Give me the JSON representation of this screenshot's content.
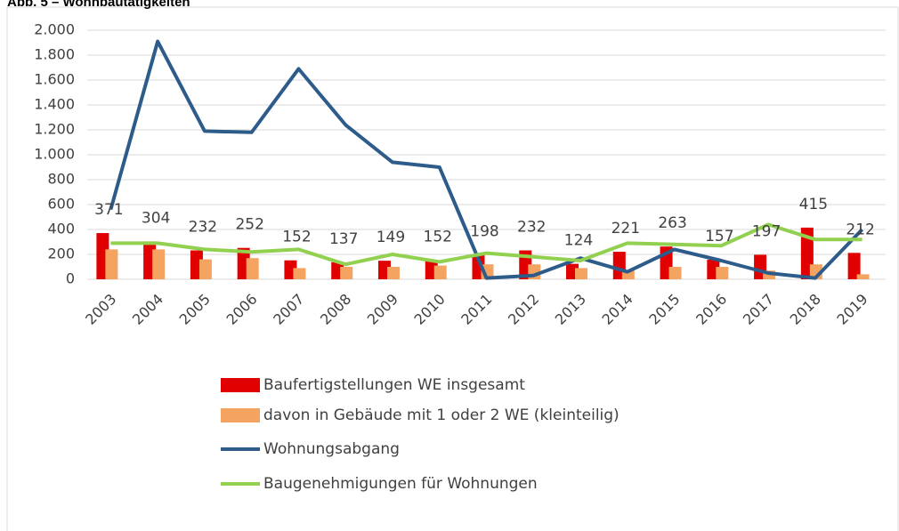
{
  "chart_data": {
    "type": "bar-line",
    "title": "Abb. 5 – Wohnbautätigkeiten",
    "categories": [
      "2003",
      "2004",
      "2005",
      "2006",
      "2007",
      "2008",
      "2009",
      "2010",
      "2011",
      "2012",
      "2013",
      "2014",
      "2015",
      "2016",
      "2017",
      "2018",
      "2019"
    ],
    "series": [
      {
        "name": "Baufertigstellungen WE insgesamt",
        "kind": "bar",
        "color": "#e00000",
        "values": [
          371,
          304,
          232,
          252,
          152,
          137,
          149,
          152,
          198,
          232,
          124,
          221,
          263,
          157,
          197,
          415,
          212
        ]
      },
      {
        "name": "davon in Gebäude mit 1 oder 2 WE (kleinteilig)",
        "kind": "bar",
        "color": "#f4a460",
        "values": [
          240,
          240,
          160,
          170,
          90,
          100,
          100,
          110,
          120,
          120,
          90,
          70,
          100,
          100,
          70,
          120,
          40
        ]
      },
      {
        "name": "Wohnungsabgang",
        "kind": "line",
        "color": "#2e5c8a",
        "values": [
          560,
          1910,
          1190,
          1180,
          1690,
          1240,
          940,
          900,
          10,
          30,
          170,
          60,
          240,
          150,
          50,
          10,
          400
        ]
      },
      {
        "name": "Baugenehmigungen für Wohnungen",
        "kind": "line",
        "color": "#92d050",
        "values": [
          290,
          290,
          240,
          220,
          240,
          120,
          200,
          140,
          210,
          180,
          150,
          290,
          280,
          270,
          440,
          320,
          320
        ]
      }
    ],
    "ylim": [
      0,
      2000
    ],
    "yticks": [
      0,
      200,
      400,
      600,
      800,
      {
        "value": 1000,
        "label": "1.000"
      },
      {
        "value": 1200,
        "label": "1.200"
      },
      {
        "value": 1400,
        "label": "1.400"
      },
      {
        "value": 1600,
        "label": "1.600"
      },
      {
        "value": 1800,
        "label": "1.800"
      },
      {
        "value": 2000,
        "label": "2.000"
      }
    ],
    "grid": true
  }
}
